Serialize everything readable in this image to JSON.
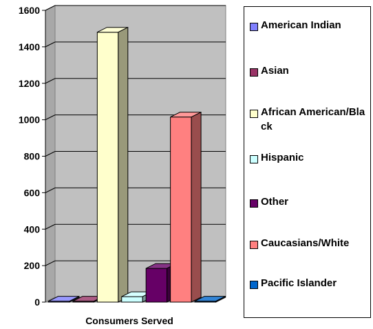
{
  "chart_data": {
    "type": "bar",
    "xlabel": "Consumers Served",
    "ylim": [
      0,
      1600
    ],
    "yticks": [
      0,
      200,
      400,
      600,
      800,
      1000,
      1200,
      1400,
      1600
    ],
    "grid": true,
    "legend_position": "right",
    "series": [
      {
        "name": "American Indian",
        "value": 5,
        "color": "#8080ff"
      },
      {
        "name": "Asian",
        "value": 5,
        "color": "#993366"
      },
      {
        "name": "African American/Black",
        "value": 1480,
        "color": "#ffffcc"
      },
      {
        "name": "Hispanic",
        "value": 30,
        "color": "#ccffff"
      },
      {
        "name": "Other",
        "value": 185,
        "color": "#660066"
      },
      {
        "name": "Caucasians/White",
        "value": 1015,
        "color": "#ff8080"
      },
      {
        "name": "Pacific Islander",
        "value": 5,
        "color": "#0066cc"
      }
    ]
  }
}
